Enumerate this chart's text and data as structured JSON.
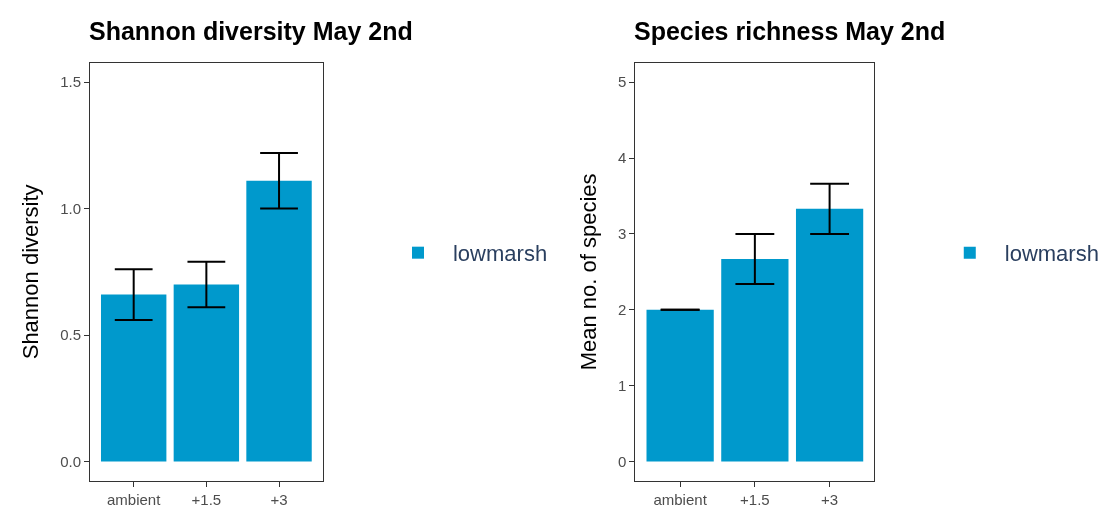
{
  "chart_data": [
    {
      "type": "bar",
      "title": "Shannon diversity May 2nd",
      "ylabel": "Shannon diversity",
      "categories": [
        "ambient",
        "+1.5",
        "+3"
      ],
      "series": [
        {
          "name": "lowmarsh",
          "color": "#0099cc",
          "values": [
            0.66,
            0.7,
            1.11
          ],
          "errors": [
            0.1,
            0.09,
            0.11
          ]
        }
      ],
      "ylim": [
        -0.075,
        1.575
      ],
      "yticks": [
        {
          "value": 0,
          "label": "0.0"
        },
        0.5,
        {
          "value": 1,
          "label": "1.0"
        },
        1.5
      ],
      "legend": "right"
    },
    {
      "type": "bar",
      "title": "Species richness May 2nd",
      "ylabel": "Mean no. of species",
      "categories": [
        "ambient",
        "+1.5",
        "+3"
      ],
      "series": [
        {
          "name": "lowmarsh",
          "color": "#0099cc",
          "values": [
            2,
            2.67,
            3.33
          ],
          "errors": [
            0,
            0.33,
            0.33
          ]
        }
      ],
      "ylim": [
        -0.25,
        5.25
      ],
      "yticks": [
        0,
        1,
        2,
        3,
        4,
        5
      ],
      "legend": "right"
    }
  ]
}
